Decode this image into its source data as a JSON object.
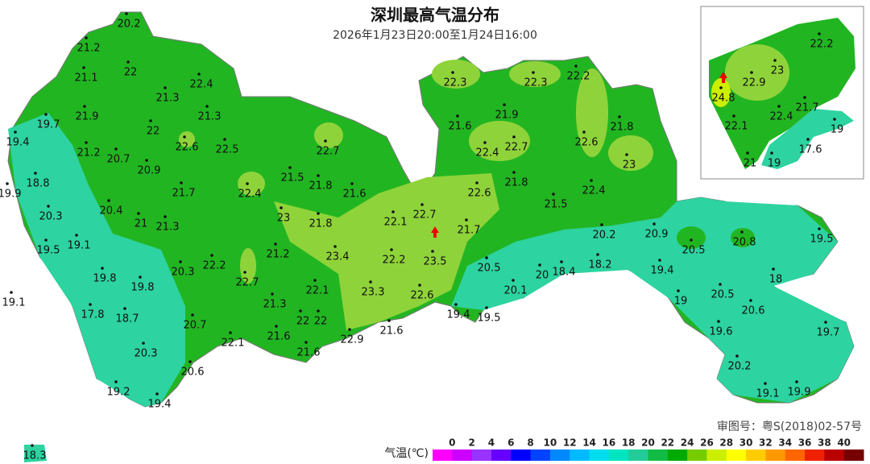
{
  "title": "深圳最高气温分布",
  "subtitle": "2026年1月23日20:00至1月24日16:00",
  "approval": "审图号：粤S(2018)02-57号",
  "stations": [
    20.2,
    21.2,
    21.1,
    22,
    22.4,
    21.3,
    19.7,
    21.9,
    21.3,
    22,
    19.4,
    22.6,
    22.5,
    21.2,
    20.7,
    20.9,
    18.8,
    21.7,
    22.4,
    19.9,
    20.3,
    20.4,
    21,
    21.3,
    19.5,
    19.1,
    23,
    21.5,
    21.8,
    21.6,
    22.7,
    21.8,
    21.2,
    23.4,
    22.2,
    20.3,
    22.7,
    19.8,
    19.8,
    17.8,
    18.7,
    19.1,
    20.7,
    21.3,
    22.1,
    22,
    22,
    21.6,
    21.6,
    22.1,
    20.3,
    20.6,
    19.2,
    19.4,
    22.9,
    21.6,
    23.3,
    22.2,
    22.1,
    22.7,
    23.5,
    22.6,
    21.7,
    22.6,
    21.8,
    22.4,
    22.7,
    21.9,
    21.6,
    22.3,
    22.3,
    22.2,
    21.8,
    22.6,
    23,
    22.4,
    21.5,
    20.2,
    20.9,
    20.5,
    20.1,
    20,
    18.4,
    18.2,
    19.4,
    19.4,
    19.5,
    20.5,
    20.8,
    19.5,
    18,
    19,
    20.5,
    20.6,
    19.6,
    19.7,
    20.2,
    19.1,
    19.9,
    18.3
  ],
  "inset_stations": [
    22.2,
    22.9,
    23,
    24.8,
    21.7,
    22.4,
    22.1,
    19,
    17.6,
    21,
    19
  ],
  "legend": {
    "label": "气温(℃)",
    "ticks": [
      0,
      2,
      4,
      6,
      8,
      10,
      12,
      14,
      16,
      18,
      20,
      22,
      24,
      26,
      28,
      30,
      32,
      34,
      36,
      38,
      40
    ],
    "colors": [
      "#ff00ff",
      "#cc00ff",
      "#9933ff",
      "#6600ff",
      "#0000ff",
      "#0044ff",
      "#0088ff",
      "#00bbff",
      "#00ddee",
      "#00e5c0",
      "#22cc99",
      "#11bb44",
      "#00aa00",
      "#77cc00",
      "#ccee00",
      "#ffff00",
      "#ffcc00",
      "#ff9900",
      "#ff6600",
      "#ee2200",
      "#bb0000",
      "#770000"
    ]
  }
}
